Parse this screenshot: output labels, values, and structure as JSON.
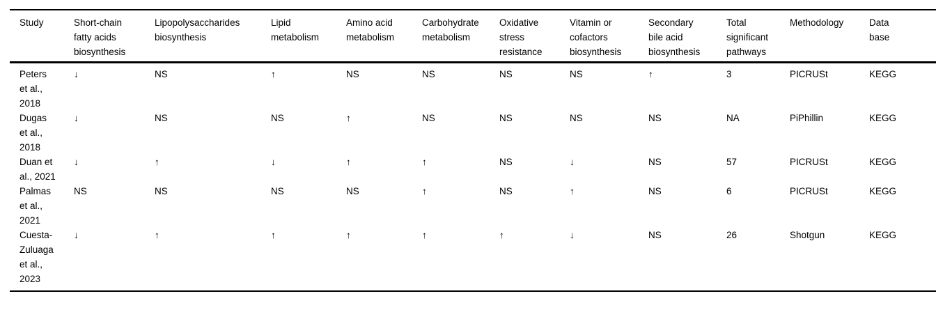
{
  "colors": {
    "text": "#000000",
    "background": "#ffffff",
    "rule": "#000000"
  },
  "table": {
    "columns": [
      "Study",
      "Short-chain fatty acids biosynthesis",
      "Lipopolysaccharides biosynthesis",
      "Lipid metabolism",
      "Amino acid metabolism",
      "Carbohydrate metabolism",
      "Oxidative stress resistance",
      "Vitamin or cofactors biosynthesis",
      "Secondary bile acid biosynthesis",
      "Total significant pathways",
      "Methodology",
      "Data base"
    ],
    "rows": [
      {
        "study": "Peters et al., 2018",
        "cells": [
          "↓",
          "NS",
          "↑",
          "NS",
          "NS",
          "NS",
          "NS",
          "↑",
          "3",
          "PICRUSt",
          "KEGG"
        ]
      },
      {
        "study": "Dugas et al., 2018",
        "cells": [
          "↓",
          "NS",
          "NS",
          "↑",
          "NS",
          "NS",
          "NS",
          "NS",
          "NA",
          "PiPhillin",
          "KEGG"
        ]
      },
      {
        "study": "Duan et al., 2021",
        "cells": [
          "↓",
          "↑",
          "↓",
          "↑",
          "↑",
          "NS",
          "↓",
          "NS",
          "57",
          "PICRUSt",
          "KEGG"
        ]
      },
      {
        "study": "Palmas et al., 2021",
        "cells": [
          "NS",
          "NS",
          "NS",
          "NS",
          "↑",
          "NS",
          "↑",
          "NS",
          "6",
          "PICRUSt",
          "KEGG"
        ]
      },
      {
        "study": "Cuesta-Zuluaga et al., 2023",
        "cells": [
          "↓",
          "↑",
          "↑",
          "↑",
          "↑",
          "↑",
          "↓",
          "NS",
          "26",
          "Shotgun",
          "KEGG"
        ]
      }
    ]
  }
}
